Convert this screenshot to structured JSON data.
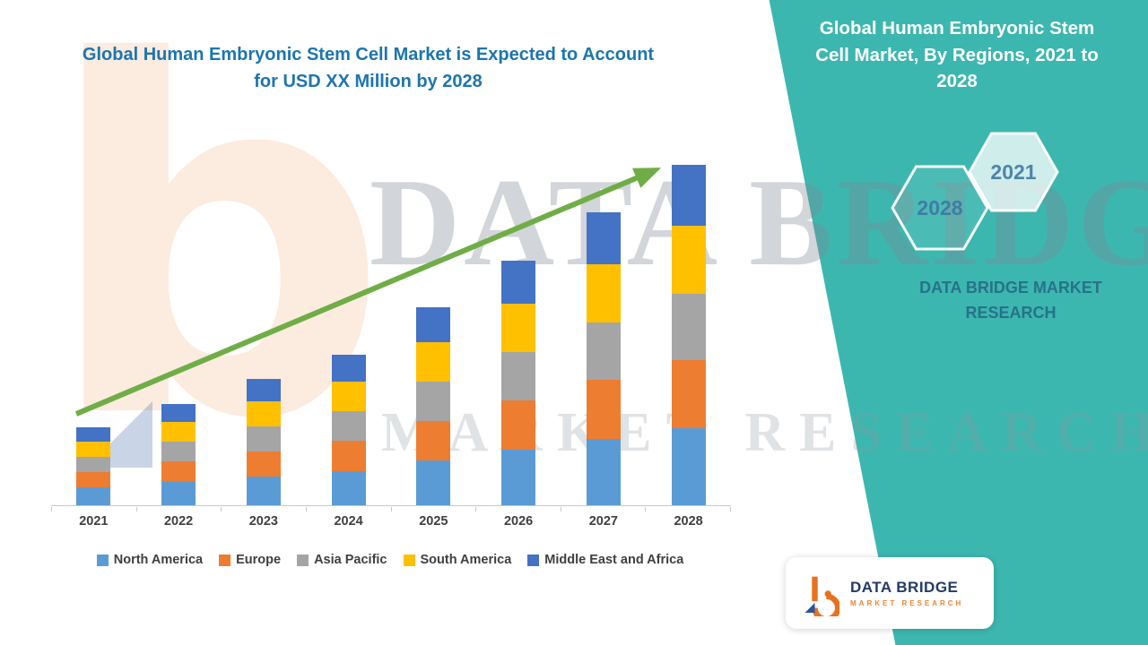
{
  "header": {
    "chart_headline": "Global Human Embryonic Stem Cell Market is Expected to Account for USD XX Million by 2028"
  },
  "watermark": {
    "logo_letter": "b",
    "line1": "DATA BRIDGE",
    "line2": "MARKET RESEARCH"
  },
  "side_panel": {
    "title": "Global Human Embryonic Stem Cell Market, By Regions, 2021 to 2028",
    "hexagon_labels": {
      "back": "2028",
      "front": "2021"
    },
    "brand_text": "DATA BRIDGE MARKET RESEARCH",
    "background_color": "#3CB7AF",
    "accent_text_color": "#3E7CA6"
  },
  "brand_card": {
    "name": "DATA BRIDGE",
    "tagline": "MARKET RESEARCH"
  },
  "colors": {
    "headline": "#1C75AE",
    "axis_labels": "#3F3F3F",
    "axis_line": "#C9C9C9",
    "watermark_orange": "#ED7D31"
  },
  "chart_data": {
    "type": "bar",
    "stacked": true,
    "orientation": "vertical",
    "title": "",
    "xlabel": "",
    "ylabel": "",
    "grid": false,
    "y_axis_visible": false,
    "legend_position": "bottom",
    "trend_arrow_color": "#70AD47",
    "value_note": "Relative units estimated from bar heights; exact values are undisclosed (USD XX Million)",
    "categories": [
      "2021",
      "2022",
      "2023",
      "2024",
      "2025",
      "2026",
      "2027",
      "2028"
    ],
    "series": [
      {
        "name": "North America",
        "color": "#5B9BD5",
        "values": [
          20,
          26,
          32,
          38,
          50,
          62,
          74,
          86
        ]
      },
      {
        "name": "Europe",
        "color": "#ED7D31",
        "values": [
          17,
          23,
          28,
          34,
          44,
          55,
          66,
          76
        ]
      },
      {
        "name": "Asia Pacific",
        "color": "#A5A5A5",
        "values": [
          17,
          22,
          28,
          33,
          44,
          54,
          65,
          75
        ]
      },
      {
        "name": "South America",
        "color": "#FFC000",
        "values": [
          17,
          22,
          28,
          33,
          44,
          55,
          65,
          76
        ]
      },
      {
        "name": "Middle East and Africa",
        "color": "#4472C4",
        "values": [
          16,
          21,
          26,
          31,
          40,
          48,
          58,
          68
        ]
      }
    ],
    "totals": [
      87,
      114,
      142,
      169,
      222,
      274,
      328,
      381
    ]
  }
}
